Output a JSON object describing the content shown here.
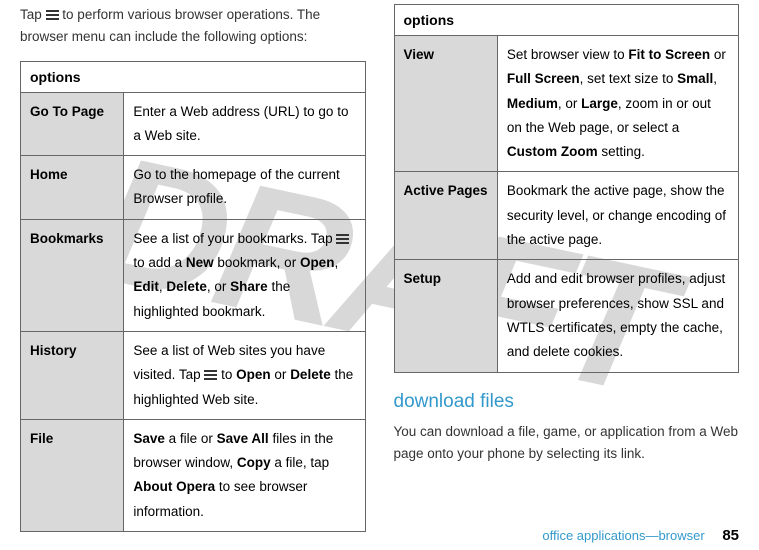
{
  "watermark": "DRAFT",
  "left": {
    "intro_pre": "Tap ",
    "intro_post": " to perform various browser operations. The browser menu can include the following options:",
    "table_header": "options",
    "rows": [
      {
        "label": "Go To Page",
        "desc": "Enter a Web address (URL) to go to a Web site."
      },
      {
        "label": "Home",
        "desc": "Go to the homepage of the current Browser profile."
      },
      {
        "label": "Bookmarks",
        "desc_parts": {
          "a": "See a list of your bookmarks. Tap ",
          "b": " to add a ",
          "new": "New",
          "c": " bookmark, or ",
          "open": "Open",
          "sep1": ", ",
          "edit": "Edit",
          "sep2": ", ",
          "delete": "Delete",
          "sep3": ", or ",
          "share": "Share",
          "d": " the highlighted bookmark."
        }
      },
      {
        "label": "History",
        "desc_parts": {
          "a": "See a list of Web sites you have visited. Tap ",
          "b": " to ",
          "open": "Open",
          "sep1": " or ",
          "delete": "Delete",
          "c": " the highlighted Web site."
        }
      },
      {
        "label": "File",
        "desc_parts": {
          "save": "Save",
          "a": " a file or ",
          "saveall": "Save All",
          "b": " files in the browser window, ",
          "copy": "Copy",
          "c": " a file, tap ",
          "about": "About Opera",
          "d": " to see browser information."
        }
      }
    ]
  },
  "right": {
    "table_header": "options",
    "rows": [
      {
        "label": "View",
        "desc_parts": {
          "a": "Set browser view to ",
          "fit": "Fit to Screen",
          "b": " or ",
          "full": "Full Screen",
          "c": ", set text size to ",
          "small": "Small",
          "s1": ", ",
          "medium": "Medium",
          "s2": ", or ",
          "large": "Large",
          "d": ", zoom in or out on the Web page, or select a ",
          "custom": "Custom Zoom",
          "e": " setting."
        }
      },
      {
        "label": "Active Pages",
        "desc": "Bookmark the active page, show the security level, or change encoding of the active page."
      },
      {
        "label": "Setup",
        "desc": "Add and edit browser profiles, adjust browser preferences, show SSL and WTLS certificates, empty the cache, and delete cookies."
      }
    ],
    "section_heading": "download files",
    "section_body": "You can download a file, game, or application from a Web page onto your phone by selecting its link."
  },
  "footer": {
    "text": "office applications—browser",
    "page": "85"
  }
}
